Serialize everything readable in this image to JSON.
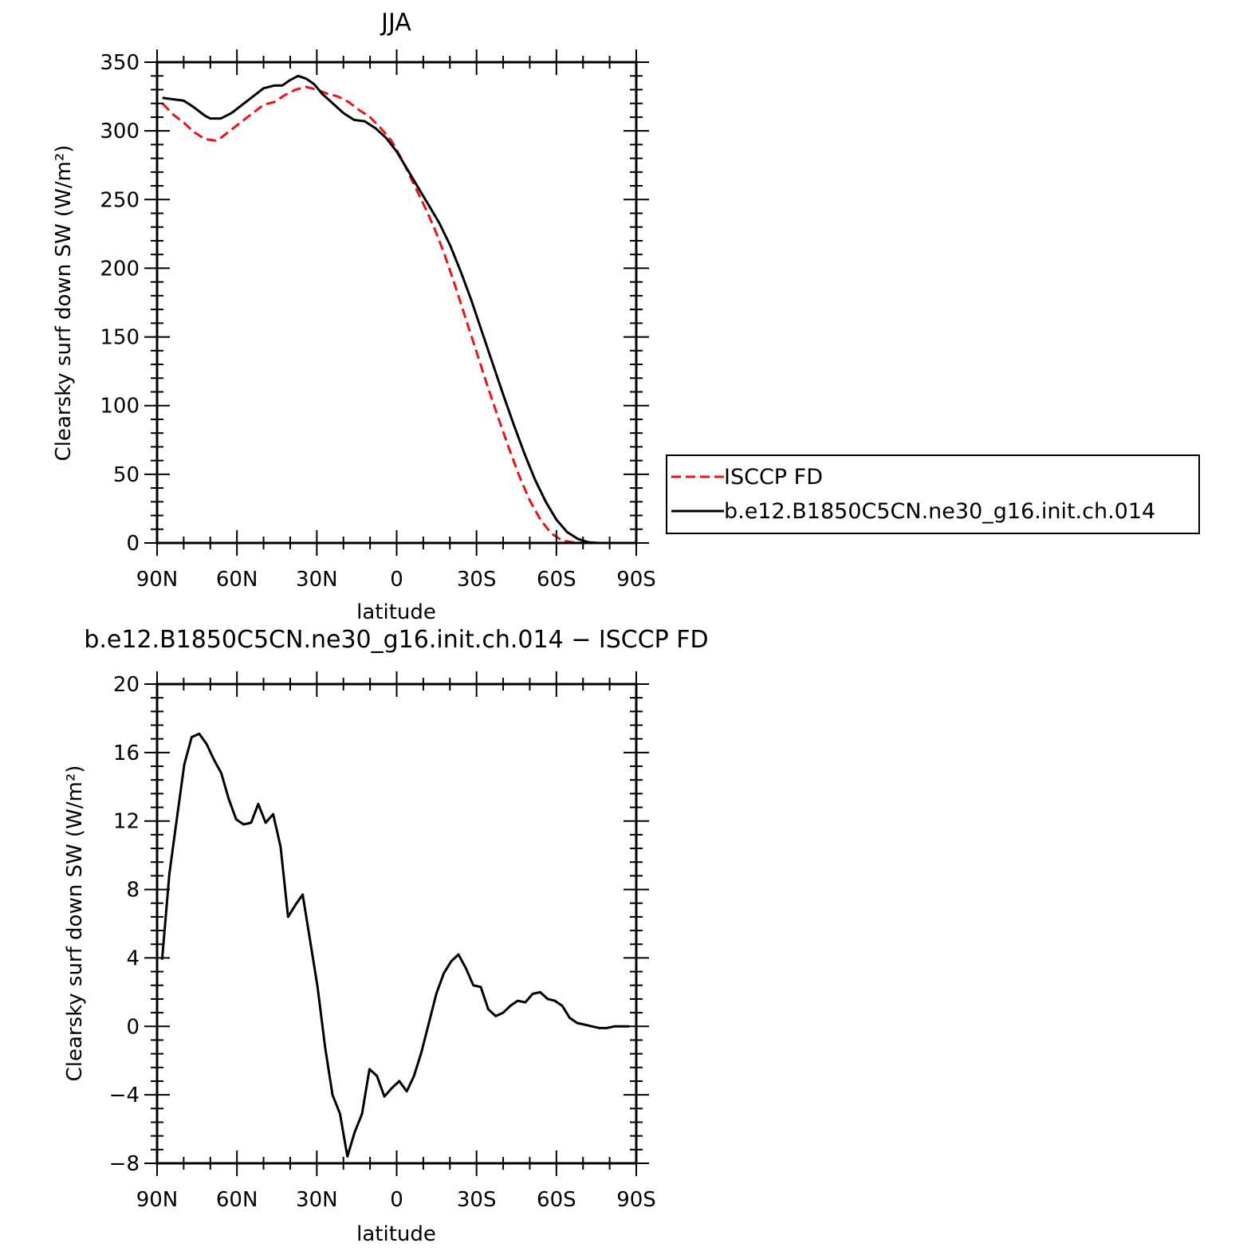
{
  "chart_data": [
    {
      "type": "line",
      "title": "JJA",
      "xlabel": "latitude",
      "ylabel": "Clearsky surf down SW (W/m²)",
      "xlim": [
        90,
        -90
      ],
      "ylim": [
        0,
        350
      ],
      "xticks": [
        90,
        60,
        30,
        0,
        -30,
        -60,
        -90
      ],
      "xtick_labels": [
        "90N",
        "60N",
        "30N",
        "0",
        "30S",
        "60S",
        "90S"
      ],
      "yticks": [
        0,
        50,
        100,
        150,
        200,
        250,
        300,
        350
      ],
      "ytick_labels": [
        "0",
        "50",
        "100",
        "150",
        "200",
        "250",
        "300",
        "350"
      ],
      "grid": false,
      "legend_position": "right",
      "series": [
        {
          "name": "ISCCP FD",
          "color": "#e8141a",
          "dash": "dashed",
          "x": [
            88,
            84,
            80,
            76,
            72,
            68,
            66,
            62,
            58,
            54,
            50,
            46,
            42,
            38,
            34,
            30,
            26,
            22,
            18,
            14,
            10,
            6,
            2,
            -2,
            -6,
            -10,
            -14,
            -18,
            -22,
            -26,
            -30,
            -34,
            -38,
            -42,
            -46,
            -50,
            -54,
            -58,
            -62,
            -66,
            -70,
            -74,
            -78,
            -82,
            -86,
            -89
          ],
          "y": [
            320,
            312,
            306,
            299,
            294,
            293,
            295,
            301,
            307,
            313,
            319,
            321,
            326,
            330,
            332,
            330,
            327,
            325,
            321,
            315,
            310,
            302,
            293,
            279,
            263,
            247,
            230,
            210,
            187,
            163,
            139,
            115,
            92,
            70,
            49,
            31,
            17,
            7,
            2,
            0.5,
            0,
            0,
            0,
            0,
            0,
            0
          ]
        },
        {
          "name": "b.e12.B1850C5CN.ne30_g16.init.ch.014",
          "color": "#000000",
          "dash": "solid",
          "x": [
            88,
            84,
            80,
            76,
            72,
            70,
            66,
            62,
            58,
            54,
            50,
            46,
            43,
            40,
            37,
            34,
            31,
            28,
            24,
            20,
            16,
            12,
            8,
            4,
            0,
            -4,
            -8,
            -12,
            -16,
            -20,
            -24,
            -28,
            -32,
            -36,
            -40,
            -44,
            -48,
            -52,
            -56,
            -60,
            -64,
            -68,
            -72,
            -76,
            -80,
            -84,
            -89
          ],
          "y": [
            324,
            323,
            322,
            317,
            311,
            309,
            309,
            313,
            319,
            325,
            331,
            333,
            333,
            337,
            340,
            338,
            334,
            327,
            320,
            313,
            308,
            307,
            302,
            295,
            285,
            272,
            259,
            246,
            233,
            217,
            198,
            177,
            154,
            131,
            108,
            86,
            65,
            46,
            30,
            17,
            8,
            3,
            0.5,
            0,
            0,
            0,
            0
          ]
        }
      ]
    },
    {
      "type": "line",
      "title": "b.e12.B1850C5CN.ne30_g16.init.ch.014 − ISCCP FD",
      "xlabel": "latitude",
      "ylabel": "Clearsky surf down SW (W/m²)",
      "xlim": [
        90,
        -90
      ],
      "ylim": [
        -8,
        20
      ],
      "xticks": [
        90,
        60,
        30,
        0,
        -30,
        -60,
        -90
      ],
      "xtick_labels": [
        "90N",
        "60N",
        "30N",
        "0",
        "30S",
        "60S",
        "90S"
      ],
      "yticks": [
        -8,
        -4,
        0,
        4,
        8,
        12,
        16,
        20
      ],
      "ytick_labels": [
        "−8",
        "−4",
        "0",
        "4",
        "8",
        "12",
        "16",
        "20"
      ],
      "grid": false,
      "series": [
        {
          "color": "#000000",
          "dash": "solid",
          "x": [
            88.1,
            85.4,
            82.6,
            79.8,
            77.0,
            74.2,
            71.4,
            68.7,
            65.9,
            63.1,
            60.3,
            57.5,
            54.7,
            52.0,
            49.2,
            46.4,
            43.6,
            40.8,
            38.0,
            35.3,
            32.5,
            29.7,
            26.9,
            24.1,
            21.3,
            18.5,
            15.8,
            13.0,
            10.2,
            7.4,
            4.6,
            1.8,
            -1.0,
            -3.8,
            -6.5,
            -9.3,
            -12.1,
            -14.9,
            -17.7,
            -20.5,
            -23.2,
            -26.0,
            -28.8,
            -31.6,
            -34.4,
            -37.2,
            -40.0,
            -42.7,
            -45.5,
            -48.3,
            -51.1,
            -53.9,
            -56.7,
            -59.4,
            -62.2,
            -65.0,
            -67.8,
            -70.6,
            -73.4,
            -76.2,
            -78.9,
            -81.7,
            -84.5,
            -87.3
          ],
          "y": [
            3.9,
            8.9,
            12.1,
            15.3,
            16.9,
            17.1,
            16.5,
            15.6,
            14.8,
            13.3,
            12.1,
            11.8,
            11.9,
            13.0,
            11.9,
            12.4,
            10.5,
            6.4,
            7.1,
            7.7,
            5.0,
            2.3,
            -1.2,
            -4.0,
            -5.1,
            -7.6,
            -6.2,
            -5.1,
            -2.5,
            -2.9,
            -4.1,
            -3.6,
            -3.2,
            -3.8,
            -2.9,
            -1.5,
            0.2,
            1.9,
            3.1,
            3.8,
            4.2,
            3.4,
            2.4,
            2.3,
            1.0,
            0.6,
            0.8,
            1.2,
            1.5,
            1.4,
            1.9,
            2.0,
            1.6,
            1.5,
            1.2,
            0.5,
            0.2,
            0.1,
            0.0,
            -0.1,
            -0.1,
            0.0,
            0.0,
            0.0
          ]
        }
      ]
    }
  ],
  "legend": {
    "items": [
      {
        "label": "ISCCP FD",
        "color": "#e8141a",
        "dash": "dashed"
      },
      {
        "label": "b.e12.B1850C5CN.ne30_g16.init.ch.014",
        "color": "#000000",
        "dash": "solid"
      }
    ]
  }
}
